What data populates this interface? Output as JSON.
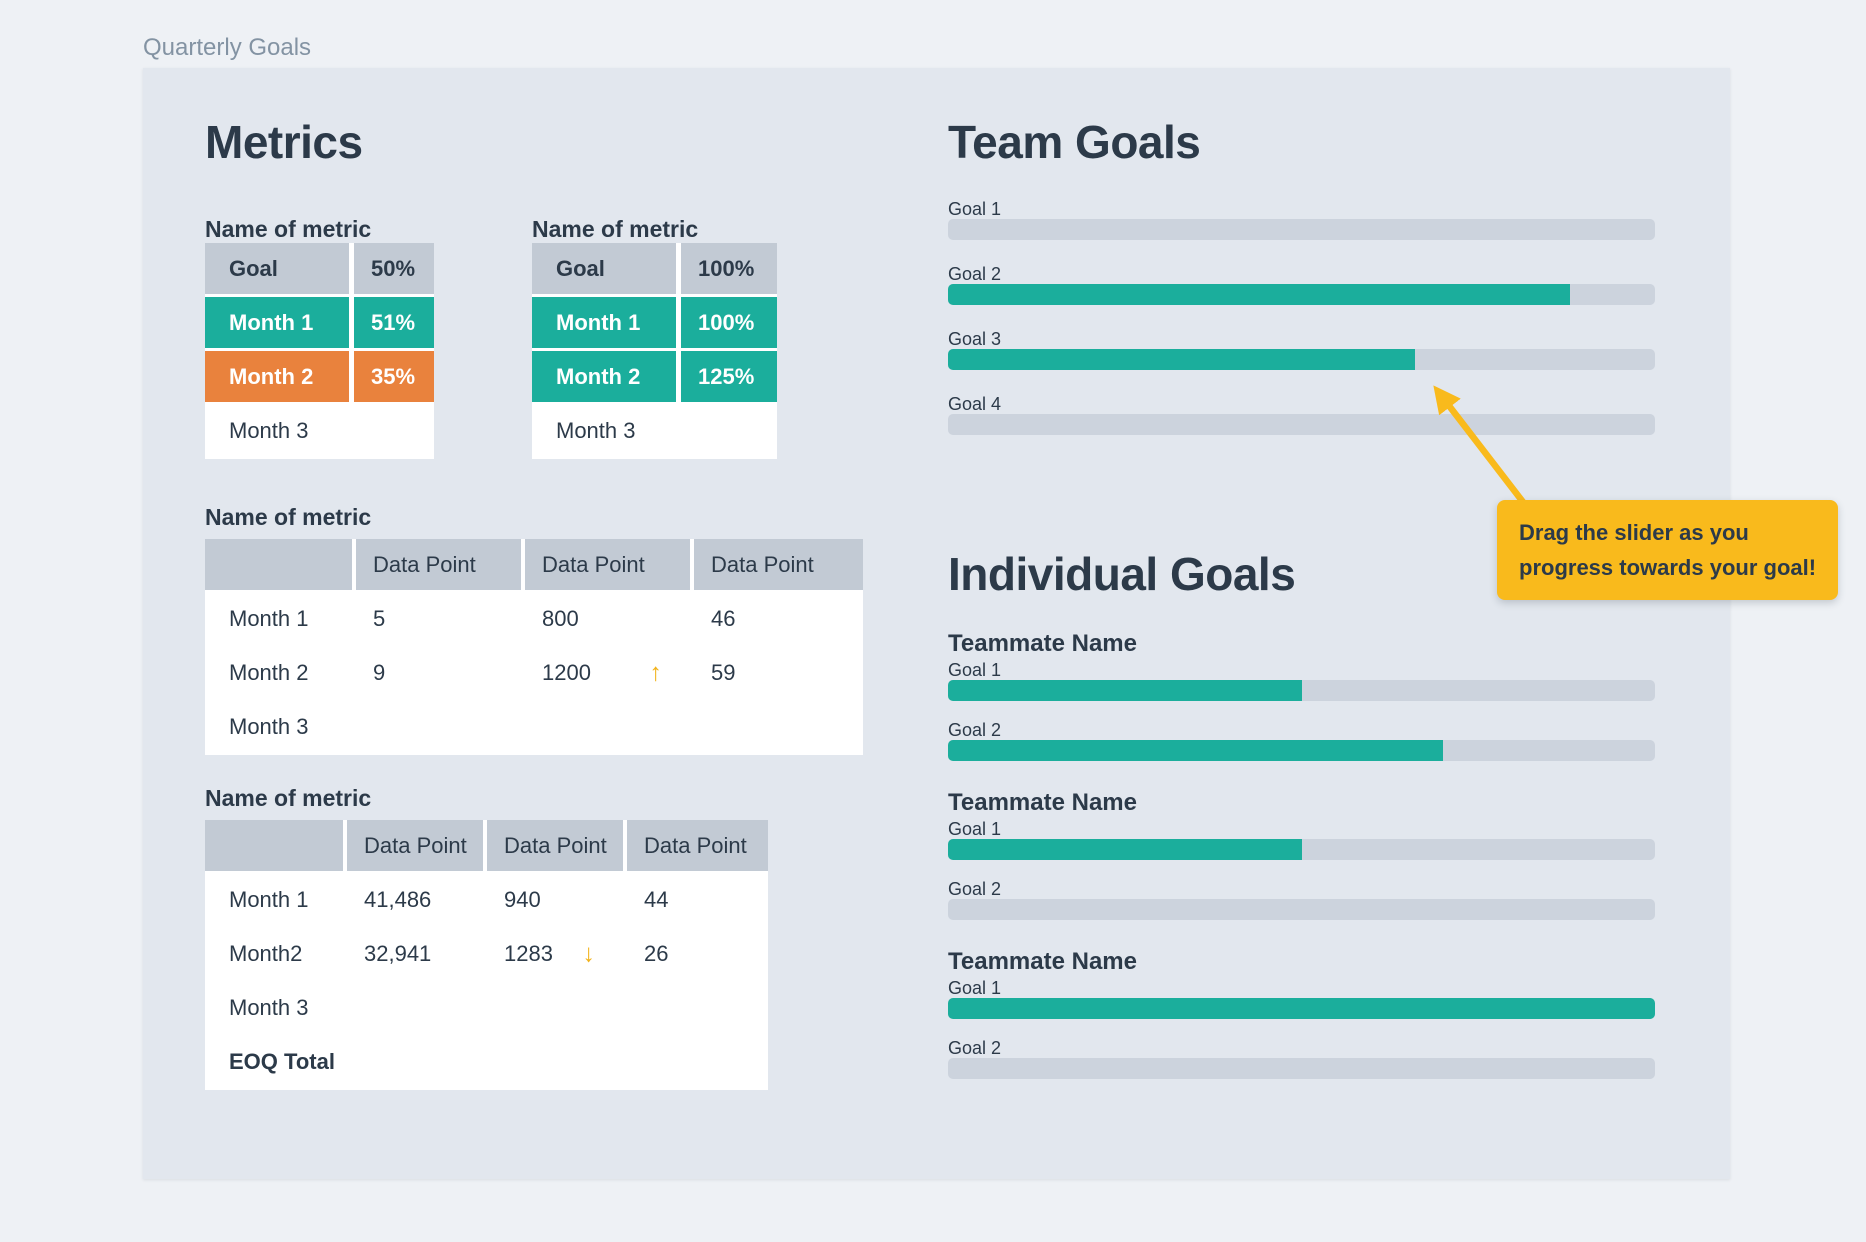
{
  "page": {
    "title": "Quarterly Goals"
  },
  "colors": {
    "teal": "#1bae9c",
    "orange": "#e9823d",
    "yellow": "#f9ba1c",
    "navy": "#2c3a49",
    "table_header_gray": "#c2cad4",
    "progress_track_gray": "#ccd3dd",
    "card_bg": "#e2e7ee",
    "page_bg": "#eef1f5"
  },
  "icons": {
    "trend_up": "↑",
    "trend_down": "↓"
  },
  "metrics": {
    "heading": "Metrics",
    "goal_tables": [
      {
        "label": "Name of metric",
        "header": {
          "name": "Goal",
          "value": "50%"
        },
        "rows": [
          {
            "name": "Month 1",
            "value": "51%",
            "status": "on-track"
          },
          {
            "name": "Month 2",
            "value": "35%",
            "status": "behind"
          },
          {
            "name": "Month 3",
            "value": "",
            "status": "none"
          }
        ]
      },
      {
        "label": "Name of metric",
        "header": {
          "name": "Goal",
          "value": "100%"
        },
        "rows": [
          {
            "name": "Month 1",
            "value": "100%",
            "status": "on-track"
          },
          {
            "name": "Month 2",
            "value": "125%",
            "status": "on-track"
          },
          {
            "name": "Month 3",
            "value": "",
            "status": "none"
          }
        ]
      }
    ],
    "data_tables": [
      {
        "label": "Name of metric",
        "columns": [
          "",
          "Data Point",
          "Data Point",
          "Data Point"
        ],
        "rows": [
          {
            "name": "Month 1",
            "values": [
              "5",
              "800",
              "46"
            ],
            "trend": ""
          },
          {
            "name": "Month 2",
            "values": [
              "9",
              "1200",
              "59"
            ],
            "trend": "up"
          },
          {
            "name": "Month 3",
            "values": [
              "",
              "",
              ""
            ],
            "trend": ""
          }
        ]
      },
      {
        "label": "Name of metric",
        "columns": [
          "",
          "Data Point",
          "Data Point",
          "Data Point"
        ],
        "rows": [
          {
            "name": "Month 1",
            "values": [
              "41,486",
              "940",
              "44"
            ],
            "trend": ""
          },
          {
            "name": "Month2",
            "values": [
              "32,941",
              "1283",
              "26"
            ],
            "trend": "down"
          },
          {
            "name": "Month 3",
            "values": [
              "",
              "",
              ""
            ],
            "trend": ""
          },
          {
            "name": "EOQ Total",
            "values": [
              "",
              "",
              ""
            ],
            "trend": "",
            "total": true
          }
        ]
      }
    ]
  },
  "team_goals": {
    "heading": "Team Goals",
    "goals": [
      {
        "label": "Goal 1",
        "progress": 0
      },
      {
        "label": "Goal 2",
        "progress": 88
      },
      {
        "label": "Goal 3",
        "progress": 66
      },
      {
        "label": "Goal 4",
        "progress": 0
      }
    ]
  },
  "callout": {
    "lines": [
      "Drag the slider as you",
      "progress towards your goal!"
    ]
  },
  "individual_goals": {
    "heading": "Individual Goals",
    "teammates": [
      {
        "name": "Teammate Name",
        "goals": [
          {
            "label": "Goal 1",
            "progress": 50
          },
          {
            "label": "Goal 2",
            "progress": 70
          }
        ]
      },
      {
        "name": "Teammate Name",
        "goals": [
          {
            "label": "Goal 1",
            "progress": 50
          },
          {
            "label": "Goal 2",
            "progress": 0
          }
        ]
      },
      {
        "name": "Teammate Name",
        "goals": [
          {
            "label": "Goal 1",
            "progress": 100
          },
          {
            "label": "Goal 2",
            "progress": 0
          }
        ]
      }
    ]
  }
}
